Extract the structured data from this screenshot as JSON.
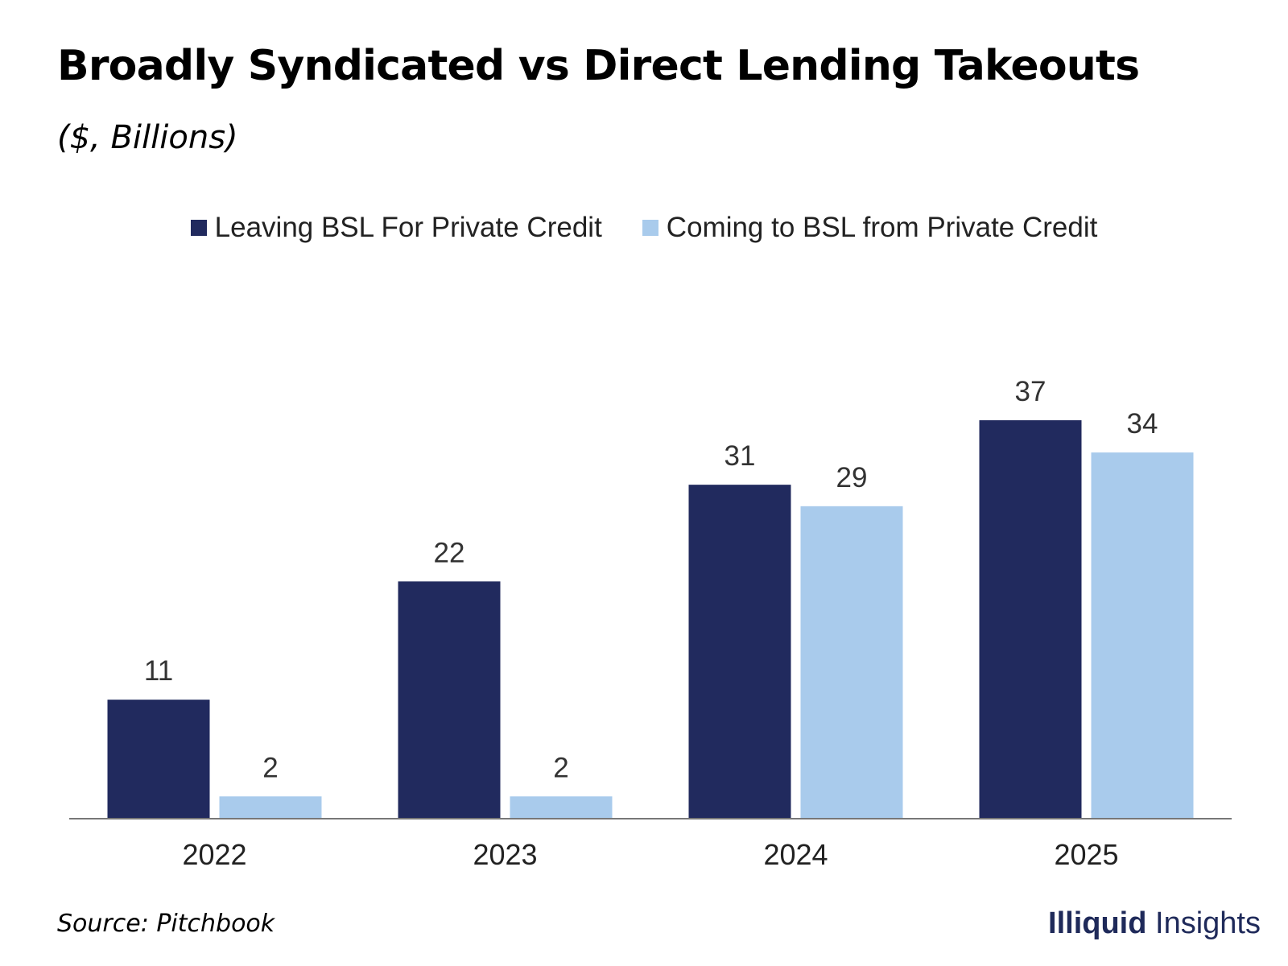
{
  "header": {
    "title": "Broadly Syndicated vs Direct Lending Takeouts",
    "subtitle": "($, Billions)"
  },
  "footer": {
    "source": "Source: Pitchbook",
    "brand_bold": "Illiquid",
    "brand_regular": " Insights"
  },
  "colors": {
    "leaving": "#212a5e",
    "coming": "#a9cbec",
    "axis": "#777777",
    "label": "#333333",
    "brand": "#1f2a5a"
  },
  "chart_data": {
    "type": "bar",
    "title": "Broadly Syndicated vs Direct Lending Takeouts",
    "subtitle": "($, Billions)",
    "xlabel": "",
    "ylabel": "",
    "categories": [
      "2022",
      "2023",
      "2024",
      "2025"
    ],
    "series": [
      {
        "name": "Leaving BSL For Private Credit",
        "values": [
          11,
          22,
          31,
          37
        ],
        "color": "#212a5e"
      },
      {
        "name": "Coming to BSL from Private Credit",
        "values": [
          2,
          2,
          29,
          34
        ],
        "color": "#a9cbec"
      }
    ],
    "data_labels": [
      [
        "11",
        "22",
        "31",
        "37"
      ],
      [
        "2",
        "2",
        "29",
        "34"
      ]
    ],
    "ylim": [
      0,
      40
    ],
    "grid": false,
    "legend": "top-center"
  }
}
